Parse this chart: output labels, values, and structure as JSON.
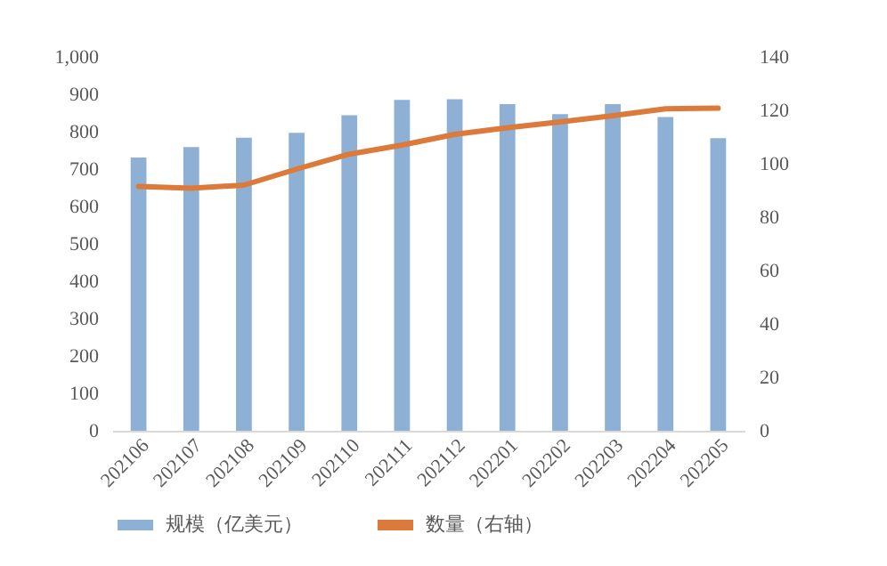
{
  "chart_data": {
    "type": "bar",
    "categories": [
      "202106",
      "202107",
      "202108",
      "202109",
      "202110",
      "202111",
      "202112",
      "202201",
      "202202",
      "202203",
      "202204",
      "202205"
    ],
    "series": [
      {
        "name": "规模（亿美元）",
        "color": "#8eb0d4",
        "values": [
          731,
          759,
          784,
          797,
          844,
          885,
          887,
          874,
          847,
          874,
          839,
          783
        ]
      },
      {
        "name": "数量（右轴）",
        "type": "line",
        "axis": "y2",
        "color": "#dc7a3c",
        "values": [
          91.5,
          90.8,
          92,
          98,
          103.6,
          107,
          111,
          113.5,
          115.7,
          118,
          120.6,
          120.8
        ]
      }
    ],
    "ylim": [
      0,
      1000
    ],
    "yticks": [
      0,
      {
        "value": 100,
        "label": "100"
      },
      200,
      300,
      400,
      500,
      600,
      700,
      800,
      900,
      {
        "value": 1000,
        "label": "1,000"
      }
    ],
    "y2lim": [
      0,
      140
    ],
    "y2ticks": [
      0,
      20,
      40,
      60,
      80,
      100,
      120,
      140
    ],
    "legend": "bottom"
  }
}
